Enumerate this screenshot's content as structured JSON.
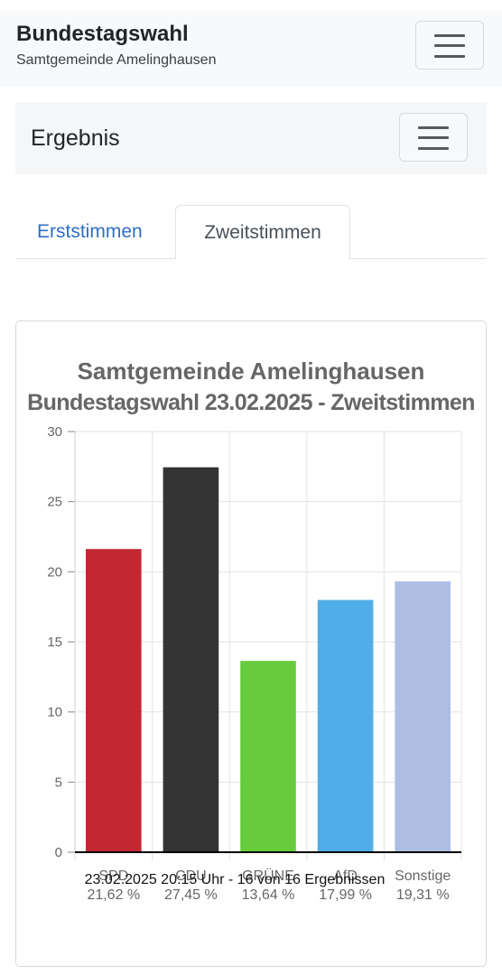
{
  "header": {
    "title": "Bundestagswahl",
    "subtitle": "Samtgemeinde Amelinghausen"
  },
  "subnav": {
    "title": "Ergebnis"
  },
  "tabs": [
    {
      "label": "Erststimmen",
      "active": false
    },
    {
      "label": "Zweitstimmen",
      "active": true
    }
  ],
  "chart_data": {
    "type": "bar",
    "title": "Samtgemeinde Amelinghausen",
    "subtitle": "Bundestagswahl 23.02.2025  - Zweitstimmen",
    "categories": [
      "SPD",
      "CDU",
      "GRÜNE",
      "AfD",
      "Sonstige"
    ],
    "values": [
      21.62,
      27.45,
      13.64,
      17.99,
      19.31
    ],
    "value_labels": [
      "21,62 %",
      "27,45 %",
      "13,64 %",
      "17,99 %",
      "19,31 %"
    ],
    "colors": [
      "#c32832",
      "#343434",
      "#66cc3d",
      "#50ade8",
      "#aebde2"
    ],
    "ylim": [
      0,
      30
    ],
    "yticks": [
      "0",
      "5",
      "10",
      "15",
      "20",
      "25",
      "30"
    ],
    "grid": true,
    "legend": "none"
  },
  "footer": {
    "note": "23.02.2025 20:15 Uhr - 16 von 16 Ergebnissen"
  }
}
